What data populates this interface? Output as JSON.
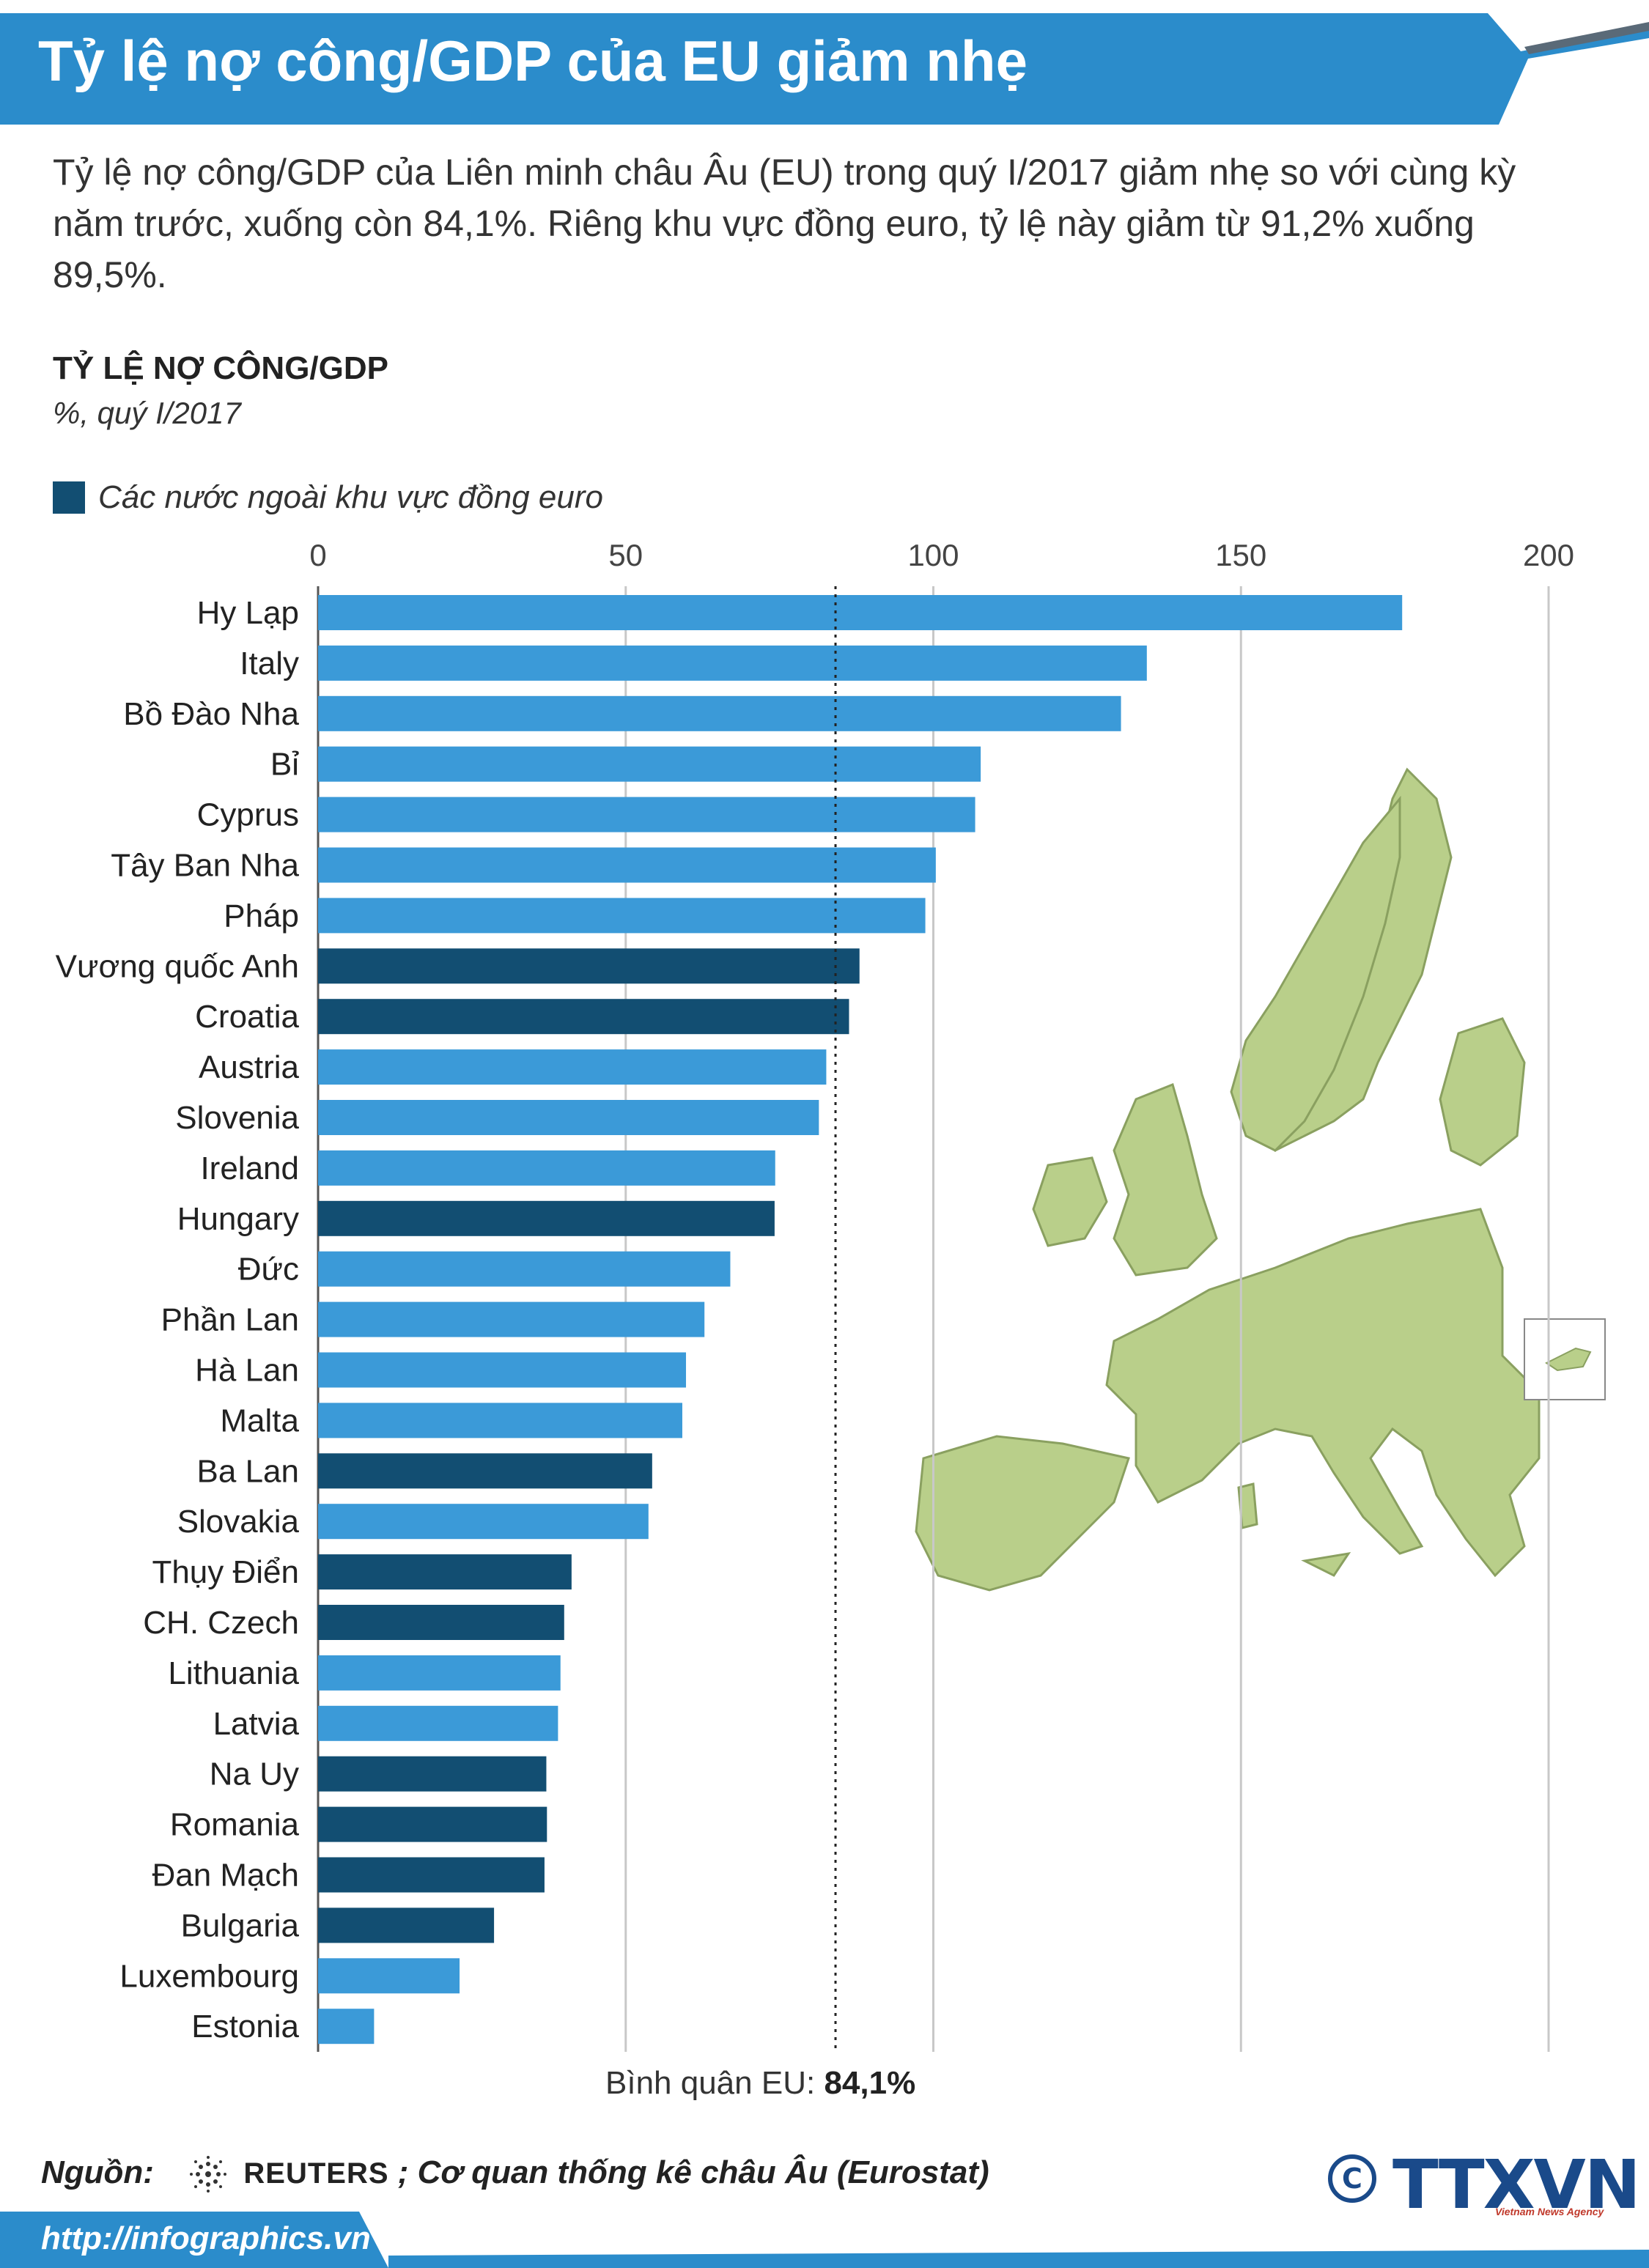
{
  "title": "Tỷ lệ nợ công/GDP của EU giảm nhẹ",
  "intro": "Tỷ lệ nợ công/GDP của Liên minh châu Âu (EU) trong quý I/2017 giảm nhẹ so với cùng kỳ năm trước, xuống còn 84,1%. Riêng khu vực đồng euro, tỷ lệ này giảm từ 91,2% xuống 89,5%.",
  "colors": {
    "banner": "#2b8ccb",
    "euro_bar": "#3b9ad8",
    "non_euro_bar": "#124e72",
    "footer": "#2b8ccb",
    "map_land": "#b9cf8a"
  },
  "chart_data": {
    "type": "bar",
    "orientation": "horizontal",
    "title": "TỶ LỆ NỢ CÔNG/GDP",
    "subtitle": "%, quý I/2017",
    "legend": "Các nước ngoài khu vực đồng euro",
    "xlim": [
      0,
      200
    ],
    "ticks": [
      "0",
      "50",
      "100",
      "150",
      "200"
    ],
    "grid": true,
    "reference_line": {
      "value": 84.1,
      "label": "Bình quân EU:",
      "value_text": "84,1%"
    },
    "categories": [
      "Hy Lạp",
      "Italy",
      "Bồ Đào Nha",
      "Bỉ",
      "Cyprus",
      "Tây Ban Nha",
      "Pháp",
      "Vương quốc Anh",
      "Croatia",
      "Austria",
      "Slovenia",
      "Ireland",
      "Hungary",
      "Đức",
      "Phần Lan",
      "Hà Lan",
      "Malta",
      "Ba Lan",
      "Slovakia",
      "Thụy Điển",
      "CH. Czech",
      "Lithuania",
      "Latvia",
      "Na Uy",
      "Romania",
      "Đan Mạch",
      "Bulgaria",
      "Luxembourg",
      "Estonia"
    ],
    "values": [
      176.2,
      134.7,
      130.5,
      107.7,
      106.8,
      100.4,
      98.7,
      88.0,
      86.3,
      82.6,
      81.4,
      74.3,
      74.2,
      67.0,
      62.8,
      59.8,
      59.2,
      54.3,
      53.7,
      41.2,
      40.0,
      39.4,
      39.0,
      37.1,
      37.2,
      36.8,
      28.6,
      23.0,
      9.1
    ],
    "non_euro": [
      false,
      false,
      false,
      false,
      false,
      false,
      false,
      true,
      true,
      false,
      false,
      false,
      true,
      false,
      false,
      false,
      false,
      true,
      false,
      true,
      true,
      false,
      false,
      true,
      true,
      true,
      true,
      false,
      false
    ]
  },
  "source": {
    "label": "Nguồn:",
    "reuters": "REUTERS",
    "rest": "; Cơ quan thống kê châu Âu (Eurostat)"
  },
  "footer": {
    "url": "http://infographics.vn"
  },
  "logo": {
    "text": "TTXVN",
    "sub": "Vietnam News Agency",
    "copyright": "©"
  }
}
